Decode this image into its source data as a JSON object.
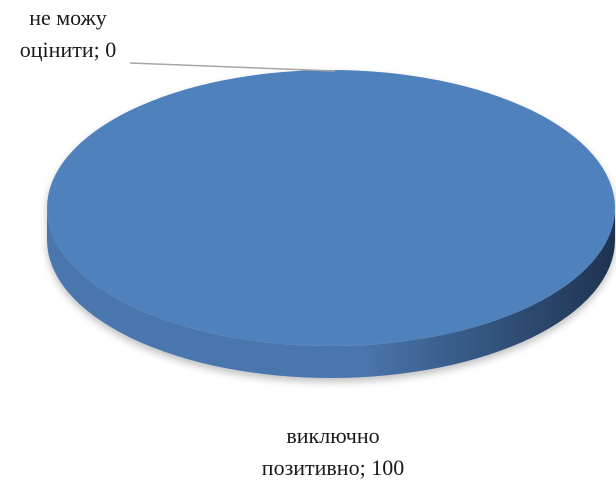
{
  "chart_data": {
    "type": "pie",
    "style": "3d",
    "slices": [
      {
        "label_line1": "не можу",
        "label_line2": "оцінити; 0",
        "category": "не можу оцінити",
        "value": 0
      },
      {
        "label_line1": "виключно",
        "label_line2": "позитивно; 100",
        "category": "виключно позитивно",
        "value": 100
      }
    ],
    "colors": {
      "top": "#4f81bd",
      "side_light": "#4a76ad",
      "side_dark": "#1e3350",
      "leader_line": "#a6a6a6"
    },
    "legend": "none"
  }
}
